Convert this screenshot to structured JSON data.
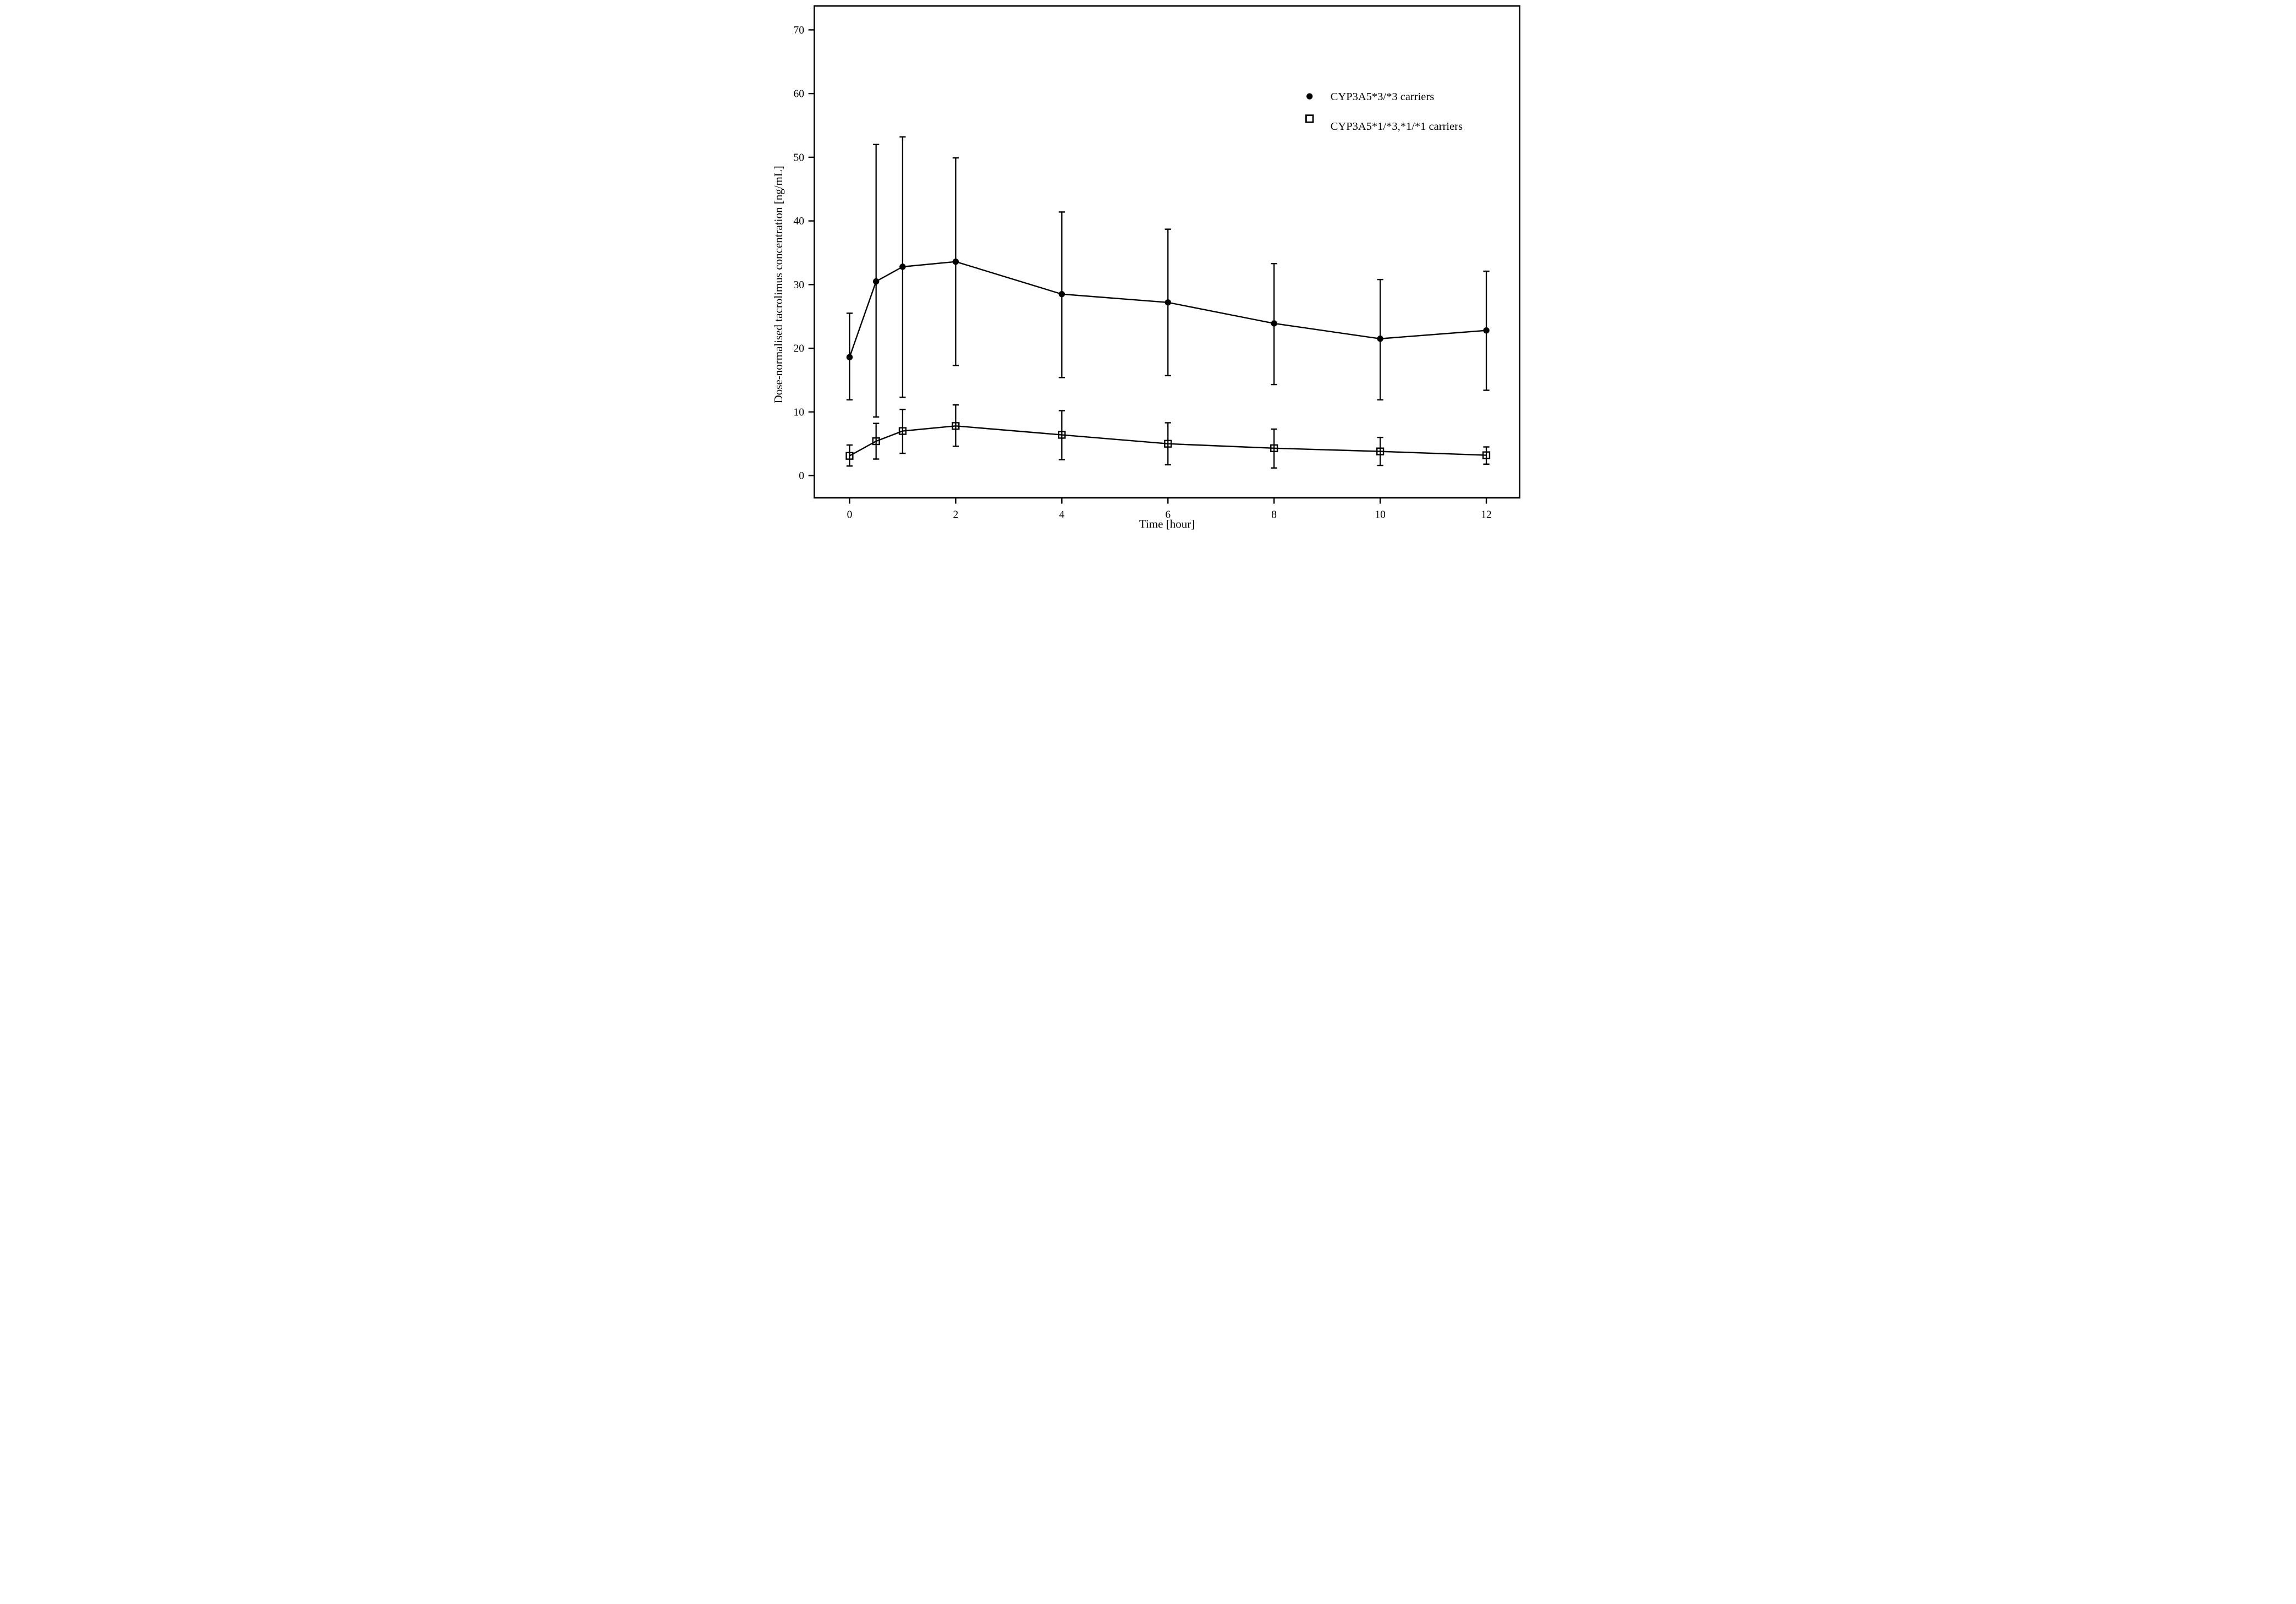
{
  "figure": {
    "background": "#ffffff",
    "axis_color": "#000000",
    "text_color": "#000000"
  },
  "chart_data": {
    "type": "line",
    "title": "",
    "xlabel": "Time [hour]",
    "ylabel": "Dose-normalised tacrolimus concentration [ng/mL]",
    "x_ticks": [
      0,
      2,
      4,
      6,
      8,
      10,
      12
    ],
    "y_ticks": [
      0,
      10,
      20,
      30,
      40,
      50,
      60,
      70
    ],
    "xlim": [
      -0.66,
      12.63
    ],
    "ylim": [
      -3.5,
      73.8
    ],
    "grid": false,
    "legend_position": "inside upper right",
    "x": [
      0,
      0.5,
      1,
      2,
      4,
      6,
      8,
      10,
      12
    ],
    "series": [
      {
        "name": "CYP3A5*3/*3 carriers",
        "marker": "filled-circle",
        "mean": [
          18.6,
          30.5,
          32.8,
          33.6,
          28.5,
          27.2,
          23.9,
          21.5,
          22.8
        ],
        "err_low": [
          11.9,
          9.2,
          12.3,
          17.3,
          15.4,
          15.7,
          14.3,
          11.9,
          13.4
        ],
        "err_high": [
          25.5,
          52.0,
          53.2,
          49.9,
          41.4,
          38.7,
          33.3,
          30.8,
          32.1
        ]
      },
      {
        "name": "CYP3A5*1/*3,*1/*1 carriers",
        "marker": "open-square",
        "mean": [
          3.1,
          5.4,
          7.0,
          7.8,
          6.4,
          5.0,
          4.3,
          3.8,
          3.2
        ],
        "err_low": [
          1.5,
          2.6,
          3.5,
          4.6,
          2.5,
          1.7,
          1.2,
          1.6,
          1.8
        ],
        "err_high": [
          4.8,
          8.2,
          10.4,
          11.1,
          10.2,
          8.3,
          7.3,
          6.0,
          4.5
        ]
      }
    ]
  },
  "legend": {
    "item1": "CYP3A5*3/*3 carriers",
    "item2": "CYP3A5*1/*3,*1/*1 carriers"
  }
}
